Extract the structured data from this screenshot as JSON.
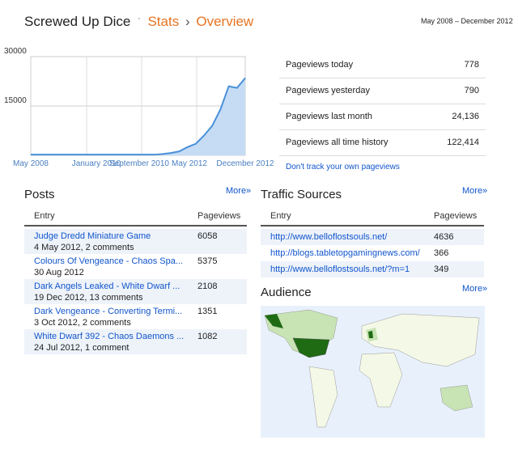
{
  "header": {
    "blog": "Screwed Up Dice",
    "sep1": "·",
    "crumb1": "Stats",
    "sep2": "›",
    "crumb2": "Overview",
    "range": "May 2008 – December 2012"
  },
  "chart": {
    "type": "area",
    "color": "#4a90d9",
    "fill": "#c6dcf5",
    "x_labels": [
      "May 2008",
      "January 2010",
      "September 2010",
      "May 2012",
      "December 2012"
    ],
    "values": [
      200,
      200,
      200,
      200,
      200,
      200,
      200,
      200,
      200,
      200,
      200,
      200,
      200,
      200,
      200,
      200,
      400,
      700,
      1200,
      2500,
      3500,
      6000,
      9000,
      14000,
      21000,
      20500,
      23500
    ],
    "ylim": [
      0,
      30000
    ],
    "yticks": [
      15000,
      30000
    ],
    "grid": true
  },
  "stats": {
    "rows": [
      [
        "Pageviews today",
        "778"
      ],
      [
        "Pageviews yesterday",
        "790"
      ],
      [
        "Pageviews last month",
        "24,136"
      ],
      [
        "Pageviews all time history",
        "122,414"
      ]
    ],
    "link": "Don't track your own pageviews"
  },
  "posts": {
    "title": "Posts",
    "more": "More»",
    "columns": [
      "Entry",
      "Pageviews"
    ],
    "rows": [
      [
        "Judge Dredd Miniature Game",
        "4 May 2012, 2 comments",
        "6058"
      ],
      [
        "Colours Of Vengeance - Chaos Spa...",
        "30 Aug 2012",
        "5375"
      ],
      [
        "Dark Angels Leaked - White Dwarf ...",
        "19 Dec 2012, 13 comments",
        "2108"
      ],
      [
        "Dark Vengeance - Converting Termi...",
        "3 Oct 2012, 2 comments",
        "1351"
      ],
      [
        "White Dwarf 392 - Chaos Daemons ...",
        "24 Jul 2012, 1 comment",
        "1082"
      ]
    ]
  },
  "traffic": {
    "title": "Traffic Sources",
    "more": "More»",
    "columns": [
      "Entry",
      "Pageviews"
    ],
    "rows": [
      [
        "http://www.belloflostsouls.net/",
        "4636"
      ],
      [
        "http://blogs.tabletopgamingnews.com/",
        "366"
      ],
      [
        "http://www.belloflostsouls.net/?m=1",
        "349"
      ]
    ]
  },
  "audience": {
    "title": "Audience",
    "more": "More»"
  }
}
